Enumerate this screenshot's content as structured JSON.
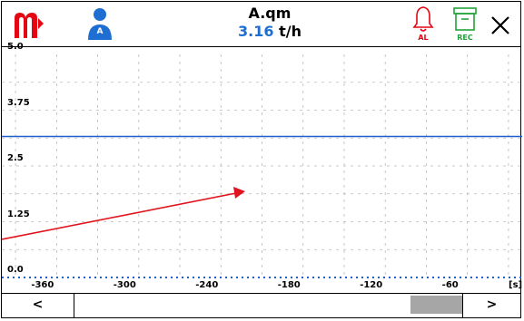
{
  "header": {
    "title": "A.qm",
    "value": "3.16",
    "unit": "t/h",
    "user_badge": "A",
    "alarm_label": "AL",
    "rec_label": "REC",
    "brand_color": "#e30613",
    "value_color": "#1e6fd1",
    "user_color": "#1e6fd1",
    "alarm_color": "#e30613",
    "rec_color": "#22a33a"
  },
  "icons": {
    "logo": "brand-logo-icon",
    "user": "user-icon",
    "alarm": "bell-icon",
    "rec": "archive-box-icon",
    "close": "close-icon"
  },
  "chart_data": {
    "type": "line",
    "title": "",
    "xlabel": "",
    "ylabel": "",
    "x_unit": "[s]",
    "ylim": [
      0,
      5
    ],
    "xlim": [
      -400,
      -20
    ],
    "y_ticks": [
      "5.0",
      "3.75",
      "2.5",
      "1.25",
      "0.0"
    ],
    "x_ticks": [
      "-360",
      "-300",
      "-240",
      "-180",
      "-120",
      "-60"
    ],
    "grid": true,
    "series": [
      {
        "color": "#1e5fc8",
        "style": "solid",
        "x": [
          -400,
          -20
        ],
        "y": [
          3.16,
          3.16
        ]
      },
      {
        "color": "#1e5fc8",
        "style": "dotted",
        "x": [
          -400,
          -20
        ],
        "y": [
          0.0,
          0.0
        ]
      }
    ],
    "annotation": {
      "type": "arrow",
      "color": "#e0141e"
    }
  },
  "scrollbar": {
    "left_label": "<",
    "right_label": ">"
  }
}
